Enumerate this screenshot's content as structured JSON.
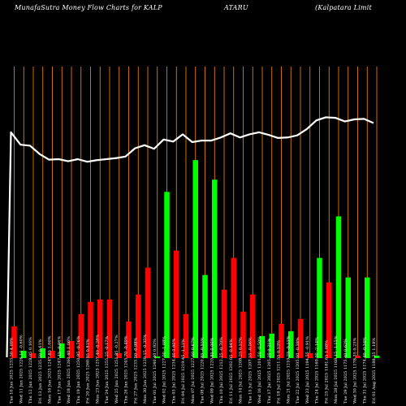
{
  "header": {
    "left": "MunafaSutra  Money Flow  Charts for KALP",
    "middle": "ATARU",
    "right": "(Kalpatara  Limit"
  },
  "colors": {
    "background": "#000000",
    "up": "#00ff00",
    "down": "#ff0000",
    "grid": "#ff8c00",
    "line": "#ffffff",
    "text": "#ffffff"
  },
  "chart_data": {
    "type": "bar",
    "title": "",
    "xlabel": "",
    "ylabel": "",
    "grid": true,
    "legend": "none",
    "categories": [
      "Fri 01 Aug 2025",
      "Thu 31 Jul 2025",
      "Wed 30 Jul 2025",
      "Tue 29 Jul 2025",
      "Mon 28 Jul 2025",
      "Fri 25 Jul 2025",
      "Thu 24 Jul 2025",
      "Wed 23 Jul 2025",
      "Tue 22 Jul 2025",
      "Mon 21 Jul 2025",
      "Fri 18 Jul 2025",
      "Thu 17 Jul 2025",
      "Wed 16 Jul 2025",
      "Tue 15 Jul 2025",
      "Mon 14 Jul 2025",
      "Fri 11 Jul 2025",
      "Thu 10 Jul 2025",
      "Wed 09 Jul 2025",
      "Tue 08 Jul 2025",
      "Mon 07 Jul 2025",
      "Fri 04 Jul 2025",
      "Thu 03 Jul 2025",
      "Wed 02 Jul 2025",
      "Tue 01 Jul 2025",
      "Mon 30 Jun 2025",
      "Fri 27 Jun 2025",
      "Thu 26 Jun 2025",
      "Wed 25 Jun 2025",
      "Tue 24 Jun 2025",
      "Mon 23 Jun 2025",
      "Fri 20 Jun 2025",
      "Thu 19 Jun 2025",
      "Wed 18 Jun 2025",
      "Tue 17 Jun 2025",
      "Mon 16 Jun 2025",
      "Fri 13 Jun 2025",
      "Thu 12 Jun 2025",
      "Wed 11 Jun 2025",
      "Tue 10 Jun 2025"
    ],
    "tick_labels": [
      "1188.25 1.18%",
      "1174.40 -0.34%",
      "1178.35 0.25%",
      "1175.40 0.62%",
      "1168.15 -1.15%",
      "1181.65 1.08%",
      "1169.00 -2.14%",
      "1194.55 -0.91%",
      "1205.60 -0.38%",
      "1210.25 -0.11%",
      "1211.55 0.53%",
      "1205.20 0.31%",
      "1201.50 -0.50%",
      "1207.55 -0.06%",
      "1208.25 0.52%",
      "1202.05 -0.84%",
      "1212.25 -0.70%",
      "1220.85 0.00%",
      "1220.85 -0.55%",
      "1227.60 0.67%",
      "1219.45 -1.21%",
      "1234.40 0.60%",
      "1227.00 -1.08%",
      "1240.40 0.92%",
      "1229.15 -0.35%",
      "1233.50 -0.98%",
      "1245.70 -0.49%",
      "1251.85 -0.27%",
      "1255.25 -0.17%",
      "1257.40 -0.28%",
      "1260.95 0.81%",
      "1250.85 -0.76%",
      "1260.40 1.06%",
      "1247.15 -0.06%",
      "1247.85 1.00%",
      "1235.50 0.61%",
      "1228.05 0.16%",
      "1226.10 -0.60%",
      "1233.50 4.09%"
    ],
    "series": [
      {
        "values": [
          1,
          33,
          1,
          33,
          58,
          31,
          41,
          2,
          16,
          11,
          14,
          10,
          9,
          26,
          19,
          41,
          28,
          73,
          34,
          81,
          18,
          44,
          68,
          0,
          37,
          26,
          15,
          2,
          24,
          24,
          23,
          18,
          7,
          6,
          3,
          4,
          2,
          3,
          13
        ],
        "colors": [
          "up",
          "up",
          "down",
          "up",
          "up",
          "down",
          "up",
          "down",
          "down",
          "up",
          "down",
          "up",
          "up",
          "down",
          "down",
          "down",
          "down",
          "up",
          "up",
          "up",
          "down",
          "down",
          "up",
          "up",
          "down",
          "down",
          "down",
          "down",
          "down",
          "down",
          "down",
          "down",
          "down",
          "up",
          "down",
          "up",
          "down",
          "up",
          "down"
        ]
      }
    ],
    "price_line": [
      1178,
      1170,
      1171,
      1175,
      1168,
      1167,
      1173,
      1190,
      1202,
      1206,
      1207,
      1201,
      1196,
      1200,
      1206,
      1198,
      1206,
      1212,
      1212,
      1215,
      1200,
      1214,
      1210,
      1228,
      1221,
      1227,
      1243,
      1246,
      1248,
      1250,
      1253,
      1248,
      1252,
      1248,
      1249,
      1238,
      1222,
      1220,
      1196
    ],
    "price_line_start": 850
  }
}
